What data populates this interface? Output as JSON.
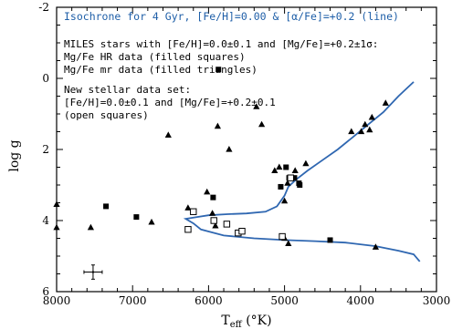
{
  "chart_data": {
    "type": "scatter",
    "title": "Isochrone for 4 Gyr, [Fe/H]=0.00 & [α/Fe]=+0.2 (line)",
    "xlabel": "T",
    "xlabel_sub": "eff",
    "xlabel_unit": " (°K)",
    "ylabel": "log g",
    "xlim": [
      8000,
      3000
    ],
    "ylim": [
      6,
      -2
    ],
    "x_ticks": [
      8000,
      7000,
      6000,
      5000,
      4000,
      3000
    ],
    "y_ticks": [
      -2,
      0,
      2,
      4,
      6
    ],
    "annotations": [
      "MILES stars with [Fe/H]=0.0±0.1 and [Mg/Fe]=+0.2±1σ:",
      "Mg/Fe HR data (filled squares)",
      "Mg/Fe mr data (filled triangles)",
      "New stellar data set:",
      "[Fe/H]=0.0±0.1 and [Mg/Fe]=+0.2±0.1",
      "(open squares)"
    ],
    "colors": {
      "isochrone": "#2f67b1",
      "title": "#1f5fa8"
    },
    "isochrone": [
      [
        3220,
        5.15
      ],
      [
        3300,
        4.95
      ],
      [
        3500,
        4.85
      ],
      [
        3800,
        4.72
      ],
      [
        4200,
        4.62
      ],
      [
        4600,
        4.58
      ],
      [
        5000,
        4.55
      ],
      [
        5400,
        4.5
      ],
      [
        5800,
        4.42
      ],
      [
        6100,
        4.25
      ],
      [
        6200,
        4.08
      ],
      [
        6300,
        3.95
      ],
      [
        6150,
        3.9
      ],
      [
        6000,
        3.85
      ],
      [
        5750,
        3.82
      ],
      [
        5500,
        3.8
      ],
      [
        5250,
        3.75
      ],
      [
        5100,
        3.6
      ],
      [
        5000,
        3.3
      ],
      [
        4950,
        3.05
      ],
      [
        4850,
        2.85
      ],
      [
        4700,
        2.6
      ],
      [
        4500,
        2.3
      ],
      [
        4300,
        2.0
      ],
      [
        4100,
        1.65
      ],
      [
        3900,
        1.3
      ],
      [
        3700,
        0.95
      ],
      [
        3500,
        0.5
      ],
      [
        3300,
        0.1
      ]
    ],
    "series": [
      {
        "marker": "filled-square",
        "points": [
          [
            7350,
            3.6
          ],
          [
            6950,
            3.9
          ],
          [
            5940,
            3.35
          ],
          [
            5870,
            -0.25
          ],
          [
            5050,
            3.05
          ],
          [
            4980,
            2.5
          ],
          [
            4940,
            2.8
          ],
          [
            4870,
            2.8
          ],
          [
            4810,
            2.95
          ],
          [
            4800,
            3.0
          ],
          [
            4400,
            4.55
          ]
        ]
      },
      {
        "marker": "filled-triangle",
        "points": [
          [
            8000,
            3.55
          ],
          [
            8000,
            4.2
          ],
          [
            7550,
            4.2
          ],
          [
            6750,
            4.05
          ],
          [
            6530,
            1.6
          ],
          [
            6270,
            3.65
          ],
          [
            6020,
            3.2
          ],
          [
            5950,
            3.8
          ],
          [
            5910,
            4.15
          ],
          [
            5880,
            1.35
          ],
          [
            5730,
            2.0
          ],
          [
            5370,
            0.8
          ],
          [
            5300,
            1.3
          ],
          [
            5130,
            2.6
          ],
          [
            5070,
            2.5
          ],
          [
            5000,
            3.45
          ],
          [
            5000,
            4.5
          ],
          [
            4960,
            2.95
          ],
          [
            4950,
            4.65
          ],
          [
            4860,
            2.6
          ],
          [
            4720,
            2.4
          ],
          [
            4120,
            1.5
          ],
          [
            3990,
            1.5
          ],
          [
            3940,
            1.3
          ],
          [
            3880,
            1.45
          ],
          [
            3850,
            1.1
          ],
          [
            3670,
            0.7
          ],
          [
            3800,
            4.75
          ]
        ]
      },
      {
        "marker": "open-square",
        "points": [
          [
            6270,
            4.25
          ],
          [
            6200,
            3.75
          ],
          [
            5930,
            4.0
          ],
          [
            5760,
            4.1
          ],
          [
            5610,
            4.35
          ],
          [
            5560,
            4.3
          ],
          [
            5030,
            4.45
          ],
          [
            4920,
            2.8
          ]
        ]
      }
    ],
    "error_bar": {
      "x": 7520,
      "y": 5.45,
      "x_err": 120,
      "y_err": 0.2
    }
  }
}
